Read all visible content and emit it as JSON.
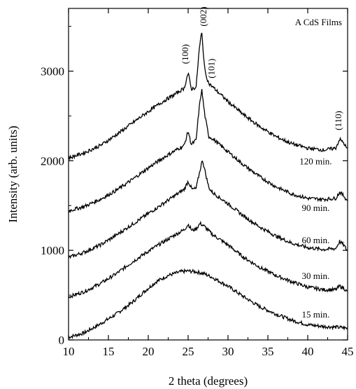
{
  "chart_data": {
    "type": "line",
    "title": "",
    "legend_text": "A CdS Films",
    "xlabel": "2 theta (degrees)",
    "ylabel": "Intensity (arb. units)",
    "xlim": [
      10,
      45
    ],
    "ylim": [
      0,
      3700
    ],
    "x_ticks": [
      10,
      15,
      20,
      25,
      30,
      35,
      40,
      45
    ],
    "x_tick_labels": [
      "10",
      "15",
      "20",
      "25",
      "30",
      "35",
      "40",
      "45"
    ],
    "y_ticks": [
      0,
      1000,
      2000,
      3000
    ],
    "y_tick_labels": [
      "0",
      "1000",
      "2000",
      "3000"
    ],
    "grid": false,
    "series": [
      {
        "name": "15 min.",
        "label_at": [
          41.0,
          250
        ],
        "points": [
          [
            10,
            30
          ],
          [
            12,
            80
          ],
          [
            14,
            180
          ],
          [
            16,
            290
          ],
          [
            18,
            420
          ],
          [
            19.5,
            540
          ],
          [
            21,
            650
          ],
          [
            22.5,
            720
          ],
          [
            24,
            760
          ],
          [
            25,
            770
          ],
          [
            26,
            760
          ],
          [
            27,
            740
          ],
          [
            28,
            700
          ],
          [
            30,
            600
          ],
          [
            32,
            480
          ],
          [
            34,
            370
          ],
          [
            36,
            290
          ],
          [
            38,
            220
          ],
          [
            40,
            170
          ],
          [
            42,
            150
          ],
          [
            44,
            140
          ],
          [
            45,
            130
          ]
        ]
      },
      {
        "name": "30 min.",
        "label_at": [
          41.0,
          680
        ],
        "points": [
          [
            10,
            480
          ],
          [
            12,
            540
          ],
          [
            14,
            630
          ],
          [
            16,
            740
          ],
          [
            18,
            870
          ],
          [
            20,
            990
          ],
          [
            22,
            1100
          ],
          [
            23.5,
            1180
          ],
          [
            24.5,
            1230
          ],
          [
            25,
            1290
          ],
          [
            25.5,
            1220
          ],
          [
            26,
            1240
          ],
          [
            26.5,
            1300
          ],
          [
            27,
            1270
          ],
          [
            28,
            1180
          ],
          [
            30,
            1060
          ],
          [
            32,
            920
          ],
          [
            34,
            810
          ],
          [
            36,
            720
          ],
          [
            38,
            650
          ],
          [
            40,
            590
          ],
          [
            42,
            560
          ],
          [
            43.5,
            560
          ],
          [
            44,
            600
          ],
          [
            44.5,
            580
          ],
          [
            45,
            530
          ]
        ]
      },
      {
        "name": "60 min.",
        "label_at": [
          41.0,
          1080
        ],
        "points": [
          [
            10,
            920
          ],
          [
            12,
            980
          ],
          [
            14,
            1060
          ],
          [
            16,
            1170
          ],
          [
            18,
            1290
          ],
          [
            20,
            1410
          ],
          [
            22,
            1530
          ],
          [
            23.5,
            1620
          ],
          [
            24.5,
            1680
          ],
          [
            25,
            1770
          ],
          [
            25.5,
            1680
          ],
          [
            26,
            1690
          ],
          [
            26.5,
            1900
          ],
          [
            26.8,
            2010
          ],
          [
            27.2,
            1850
          ],
          [
            27.6,
            1700
          ],
          [
            28,
            1650
          ],
          [
            30,
            1520
          ],
          [
            32,
            1380
          ],
          [
            34,
            1260
          ],
          [
            36,
            1160
          ],
          [
            38,
            1080
          ],
          [
            40,
            1030
          ],
          [
            42,
            1010
          ],
          [
            43.5,
            1020
          ],
          [
            44,
            1100
          ],
          [
            44.5,
            1060
          ],
          [
            45,
            990
          ]
        ]
      },
      {
        "name": "90 min.",
        "label_at": [
          41.0,
          1440
        ],
        "points": [
          [
            10,
            1440
          ],
          [
            12,
            1490
          ],
          [
            14,
            1570
          ],
          [
            16,
            1670
          ],
          [
            18,
            1790
          ],
          [
            20,
            1920
          ],
          [
            22,
            2040
          ],
          [
            23.5,
            2120
          ],
          [
            24.5,
            2170
          ],
          [
            25,
            2330
          ],
          [
            25.4,
            2180
          ],
          [
            26,
            2230
          ],
          [
            26.4,
            2600
          ],
          [
            26.7,
            2800
          ],
          [
            27.1,
            2500
          ],
          [
            27.6,
            2270
          ],
          [
            28,
            2250
          ],
          [
            30,
            2100
          ],
          [
            32,
            1950
          ],
          [
            34,
            1820
          ],
          [
            36,
            1710
          ],
          [
            38,
            1630
          ],
          [
            40,
            1580
          ],
          [
            42,
            1570
          ],
          [
            43.5,
            1580
          ],
          [
            44,
            1650
          ],
          [
            44.5,
            1610
          ],
          [
            45,
            1550
          ]
        ]
      },
      {
        "name": "120 min.",
        "label_at": [
          41.0,
          1960
        ],
        "points": [
          [
            10,
            2030
          ],
          [
            12,
            2090
          ],
          [
            14,
            2170
          ],
          [
            16,
            2290
          ],
          [
            18,
            2420
          ],
          [
            20,
            2550
          ],
          [
            22,
            2670
          ],
          [
            23.5,
            2750
          ],
          [
            24.5,
            2810
          ],
          [
            25,
            2980
          ],
          [
            25.4,
            2800
          ],
          [
            26,
            2820
          ],
          [
            26.4,
            3250
          ],
          [
            26.7,
            3440
          ],
          [
            27.1,
            3000
          ],
          [
            27.6,
            2860
          ],
          [
            28,
            2830
          ],
          [
            30,
            2660
          ],
          [
            32,
            2510
          ],
          [
            34,
            2380
          ],
          [
            36,
            2270
          ],
          [
            38,
            2190
          ],
          [
            40,
            2140
          ],
          [
            42,
            2120
          ],
          [
            43.5,
            2140
          ],
          [
            44,
            2240
          ],
          [
            44.5,
            2200
          ],
          [
            45,
            2120
          ]
        ]
      }
    ],
    "peak_labels": [
      {
        "text": "(100)",
        "at": [
          25.0,
          3080
        ]
      },
      {
        "text": "(002)",
        "at": [
          27.3,
          3500
        ]
      },
      {
        "text": "(101)",
        "at": [
          28.3,
          2920
        ]
      },
      {
        "text": "(110)",
        "at": [
          44.2,
          2340
        ]
      }
    ]
  }
}
